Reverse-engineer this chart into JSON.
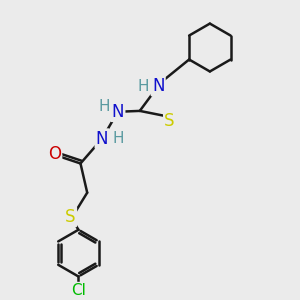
{
  "background_color": "#ebebeb",
  "bond_color": "#1a1a1a",
  "bond_width": 1.8,
  "atom_colors": {
    "N": "#1010cc",
    "H": "#5a9aa0",
    "O": "#cc0000",
    "S": "#cccc00",
    "Cl": "#00bb00",
    "C": "#1a1a1a"
  },
  "figsize": [
    3.0,
    3.0
  ],
  "dpi": 100
}
